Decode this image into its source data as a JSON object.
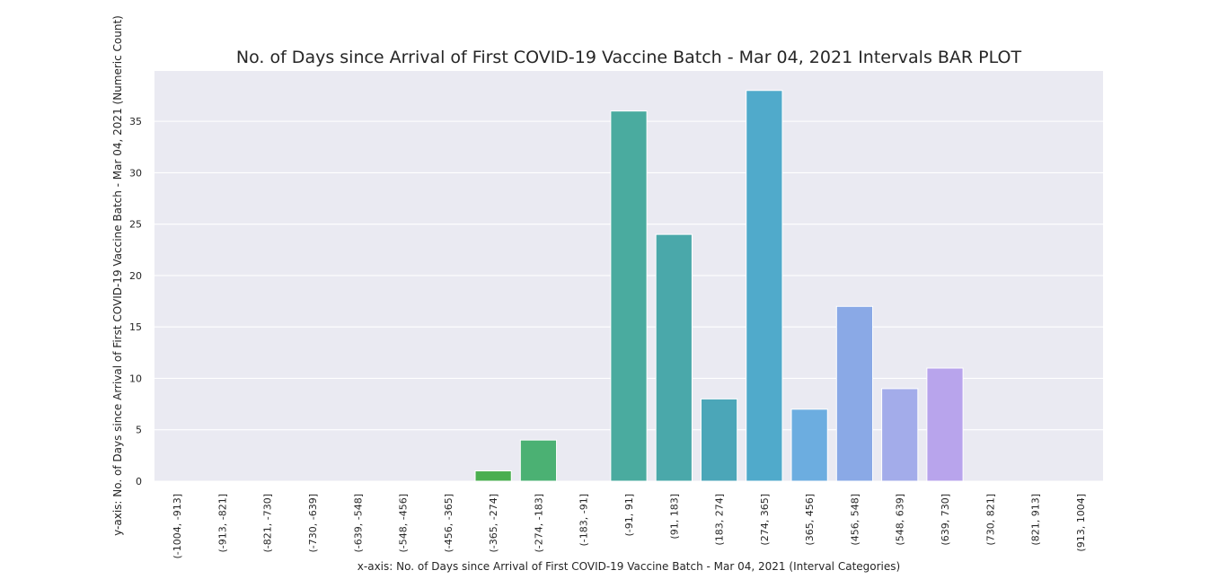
{
  "chart_data": {
    "type": "bar",
    "title": "No. of Days since Arrival of First COVID-19 Vaccine Batch - Mar 04, 2021 Intervals BAR PLOT",
    "xlabel": "x-axis: No. of Days since Arrival of First COVID-19 Vaccine Batch - Mar 04, 2021 (Interval Categories)",
    "ylabel": "y-axis: No. of Days since Arrival of First COVID-19 Vaccine Batch - Mar 04, 2021 (Numeric Count)",
    "categories": [
      "(-1004, -913]",
      "(-913, -821]",
      "(-821, -730]",
      "(-730, -639]",
      "(-639, -548]",
      "(-548, -456]",
      "(-456, -365]",
      "(-365, -274]",
      "(-274, -183]",
      "(-183, -91]",
      "(-91, 91]",
      "(91, 183]",
      "(183, 274]",
      "(274, 365]",
      "(365, 456]",
      "(456, 548]",
      "(548, 639]",
      "(639, 730]",
      "(730, 821]",
      "(821, 913]",
      "(913, 1004]"
    ],
    "values": [
      0,
      0,
      0,
      0,
      0,
      0,
      0,
      1,
      4,
      0,
      36,
      24,
      8,
      38,
      7,
      17,
      9,
      11,
      0,
      0,
      0
    ],
    "colors": [
      "#f77189",
      "#f37932",
      "#cc8e32",
      "#ae9d31",
      "#97a431",
      "#77ab31",
      "#36ad3a",
      "#4aae4f",
      "#4bb173",
      "#4bb08e",
      "#4aab9f",
      "#4aa8aa",
      "#4ba6b8",
      "#50aacb",
      "#6cade0",
      "#8aa9e6",
      "#a3acea",
      "#b8a4ec",
      "#d496e8",
      "#e28fd3",
      "#f48ab8"
    ],
    "yticks": [
      0,
      5,
      10,
      15,
      20,
      25,
      30,
      35
    ],
    "ylim": [
      0,
      39.9
    ],
    "grid": true,
    "legend": "none"
  }
}
